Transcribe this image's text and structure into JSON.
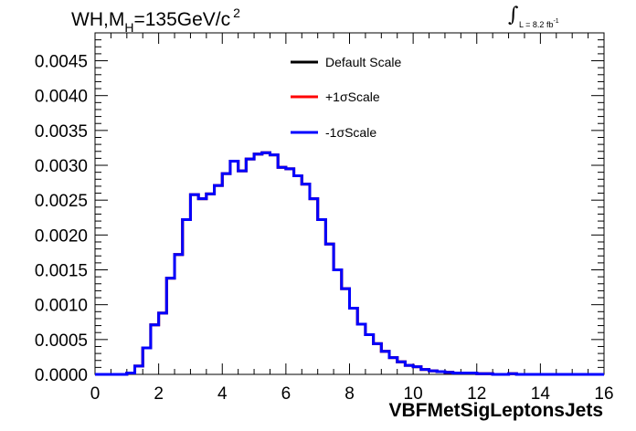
{
  "chart_data": {
    "type": "line",
    "title": "WH,M",
    "title_sub": "H",
    "title_rest": "=135GeV/c",
    "title_sup": "2",
    "lumi_text": "L = 8.2 fb",
    "lumi_sup": "-1",
    "xlabel": "VBFMetSigLeptonsJets",
    "ylabel": "",
    "xlim": [
      0,
      16
    ],
    "ylim": [
      0,
      0.0049
    ],
    "x_ticks": [
      "0",
      "2",
      "4",
      "6",
      "8",
      "10",
      "12",
      "14",
      "16"
    ],
    "y_ticks": [
      "0.0000",
      "0.0005",
      "0.0010",
      "0.0015",
      "0.0020",
      "0.0025",
      "0.0030",
      "0.0035",
      "0.0040",
      "0.0045"
    ],
    "bin_edges": [
      0,
      0.25,
      0.5,
      0.75,
      1.0,
      1.25,
      1.5,
      1.75,
      2.0,
      2.25,
      2.5,
      2.75,
      3.0,
      3.25,
      3.5,
      3.75,
      4.0,
      4.25,
      4.5,
      4.75,
      5.0,
      5.25,
      5.5,
      5.75,
      6.0,
      6.25,
      6.5,
      6.75,
      7.0,
      7.25,
      7.5,
      7.75,
      8.0,
      8.25,
      8.5,
      8.75,
      9.0,
      9.25,
      9.5,
      9.75,
      10.0,
      10.25,
      10.5,
      10.75,
      11.0,
      11.25,
      11.5,
      11.75,
      12.0,
      12.25,
      12.5,
      12.75,
      13.0,
      13.25,
      13.5,
      13.75,
      14.0,
      14.25,
      14.5,
      14.75,
      15.0,
      15.25,
      15.5,
      15.75,
      16.0
    ],
    "legend_position": "top-right",
    "series": [
      {
        "name": "Default Scale",
        "color": "#000000",
        "values": [
          0,
          0,
          0,
          0,
          2e-05,
          0.00012,
          0.00038,
          0.00071,
          0.00088,
          0.00138,
          0.00172,
          0.00222,
          0.00258,
          0.00252,
          0.00259,
          0.00271,
          0.00288,
          0.00306,
          0.00292,
          0.00309,
          0.00316,
          0.00318,
          0.00315,
          0.00297,
          0.00295,
          0.00285,
          0.00273,
          0.00252,
          0.00222,
          0.00187,
          0.0015,
          0.00123,
          0.00095,
          0.00072,
          0.00057,
          0.00044,
          0.00033,
          0.00024,
          0.00018,
          0.00013,
          0.00011,
          7e-05,
          5e-05,
          4e-05,
          3e-05,
          2e-05,
          2e-05,
          2e-05,
          1e-05,
          1e-05,
          0,
          0,
          1e-05,
          0,
          0,
          0,
          0,
          0,
          0,
          0,
          0,
          0,
          0,
          0
        ]
      },
      {
        "name": "+1σScale",
        "color": "#ff0000",
        "values": [
          0,
          0,
          0,
          0,
          2e-05,
          0.00012,
          0.00038,
          0.00071,
          0.00088,
          0.00138,
          0.00172,
          0.00222,
          0.00258,
          0.00252,
          0.00259,
          0.00271,
          0.00288,
          0.00306,
          0.00292,
          0.00309,
          0.00316,
          0.00318,
          0.00315,
          0.00297,
          0.00295,
          0.00285,
          0.00273,
          0.00252,
          0.00222,
          0.00187,
          0.0015,
          0.00123,
          0.00095,
          0.00072,
          0.00057,
          0.00044,
          0.00033,
          0.00024,
          0.00018,
          0.00013,
          0.00011,
          7e-05,
          5e-05,
          4e-05,
          3e-05,
          2e-05,
          2e-05,
          2e-05,
          1e-05,
          1e-05,
          0,
          0,
          1e-05,
          0,
          0,
          0,
          0,
          0,
          0,
          0,
          0,
          0,
          0,
          0
        ]
      },
      {
        "name": "-1σScale",
        "color": "#0000ff",
        "values": [
          0,
          0,
          0,
          0,
          2e-05,
          0.00012,
          0.00038,
          0.00071,
          0.00088,
          0.00138,
          0.00172,
          0.00222,
          0.00258,
          0.00252,
          0.00259,
          0.00271,
          0.00288,
          0.00306,
          0.00292,
          0.00309,
          0.00316,
          0.00318,
          0.00315,
          0.00297,
          0.00295,
          0.00285,
          0.00273,
          0.00252,
          0.00222,
          0.00187,
          0.0015,
          0.00123,
          0.00095,
          0.00072,
          0.00057,
          0.00044,
          0.00033,
          0.00024,
          0.00018,
          0.00013,
          0.00011,
          7e-05,
          5e-05,
          4e-05,
          3e-05,
          2e-05,
          2e-05,
          2e-05,
          1e-05,
          1e-05,
          0,
          0,
          1e-05,
          0,
          0,
          0,
          0,
          0,
          0,
          0,
          0,
          0,
          0,
          0
        ]
      }
    ]
  }
}
